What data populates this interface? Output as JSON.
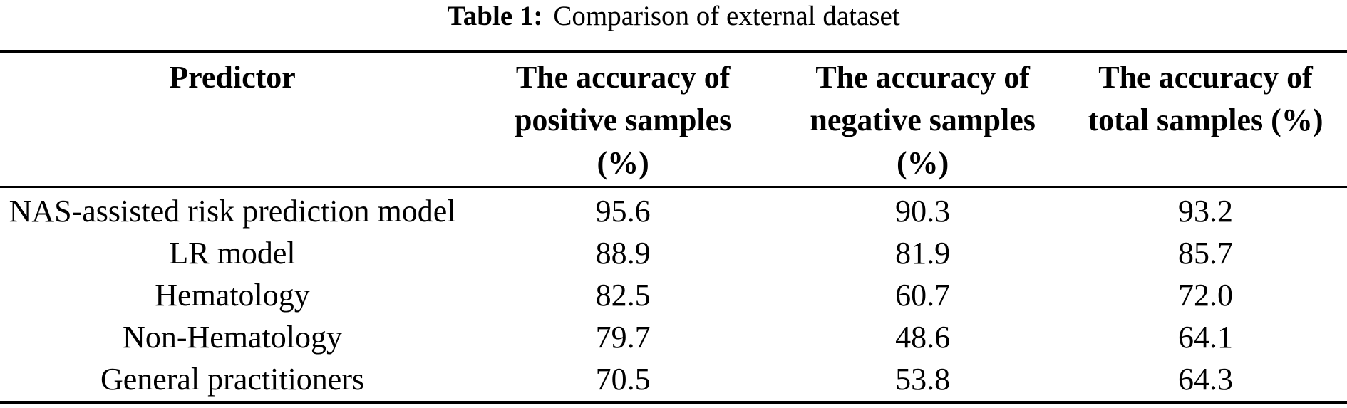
{
  "colors": {
    "background": "#ffffff",
    "text": "#000000",
    "rule": "#000000"
  },
  "caption": {
    "label": "Table 1:",
    "text": "Comparison of external dataset"
  },
  "table": {
    "columns": [
      {
        "key": "predictor",
        "lines": [
          "Predictor"
        ]
      },
      {
        "key": "positive",
        "lines": [
          "The accuracy of",
          "positive samples",
          "(%)"
        ]
      },
      {
        "key": "negative",
        "lines": [
          "The accuracy of",
          "negative samples",
          "(%)"
        ]
      },
      {
        "key": "total",
        "lines": [
          "The accuracy of",
          "total samples (%)"
        ]
      }
    ],
    "rows": [
      {
        "predictor": "NAS-assisted risk prediction model",
        "positive": "95.6",
        "negative": "90.3",
        "total": "93.2"
      },
      {
        "predictor": "LR model",
        "positive": "88.9",
        "negative": "81.9",
        "total": "85.7"
      },
      {
        "predictor": "Hematology",
        "positive": "82.5",
        "negative": "60.7",
        "total": "72.0"
      },
      {
        "predictor": "Non-Hematology",
        "positive": "79.7",
        "negative": "48.6",
        "total": "64.1"
      },
      {
        "predictor": "General practitioners",
        "positive": "70.5",
        "negative": "53.8",
        "total": "64.3"
      }
    ]
  }
}
